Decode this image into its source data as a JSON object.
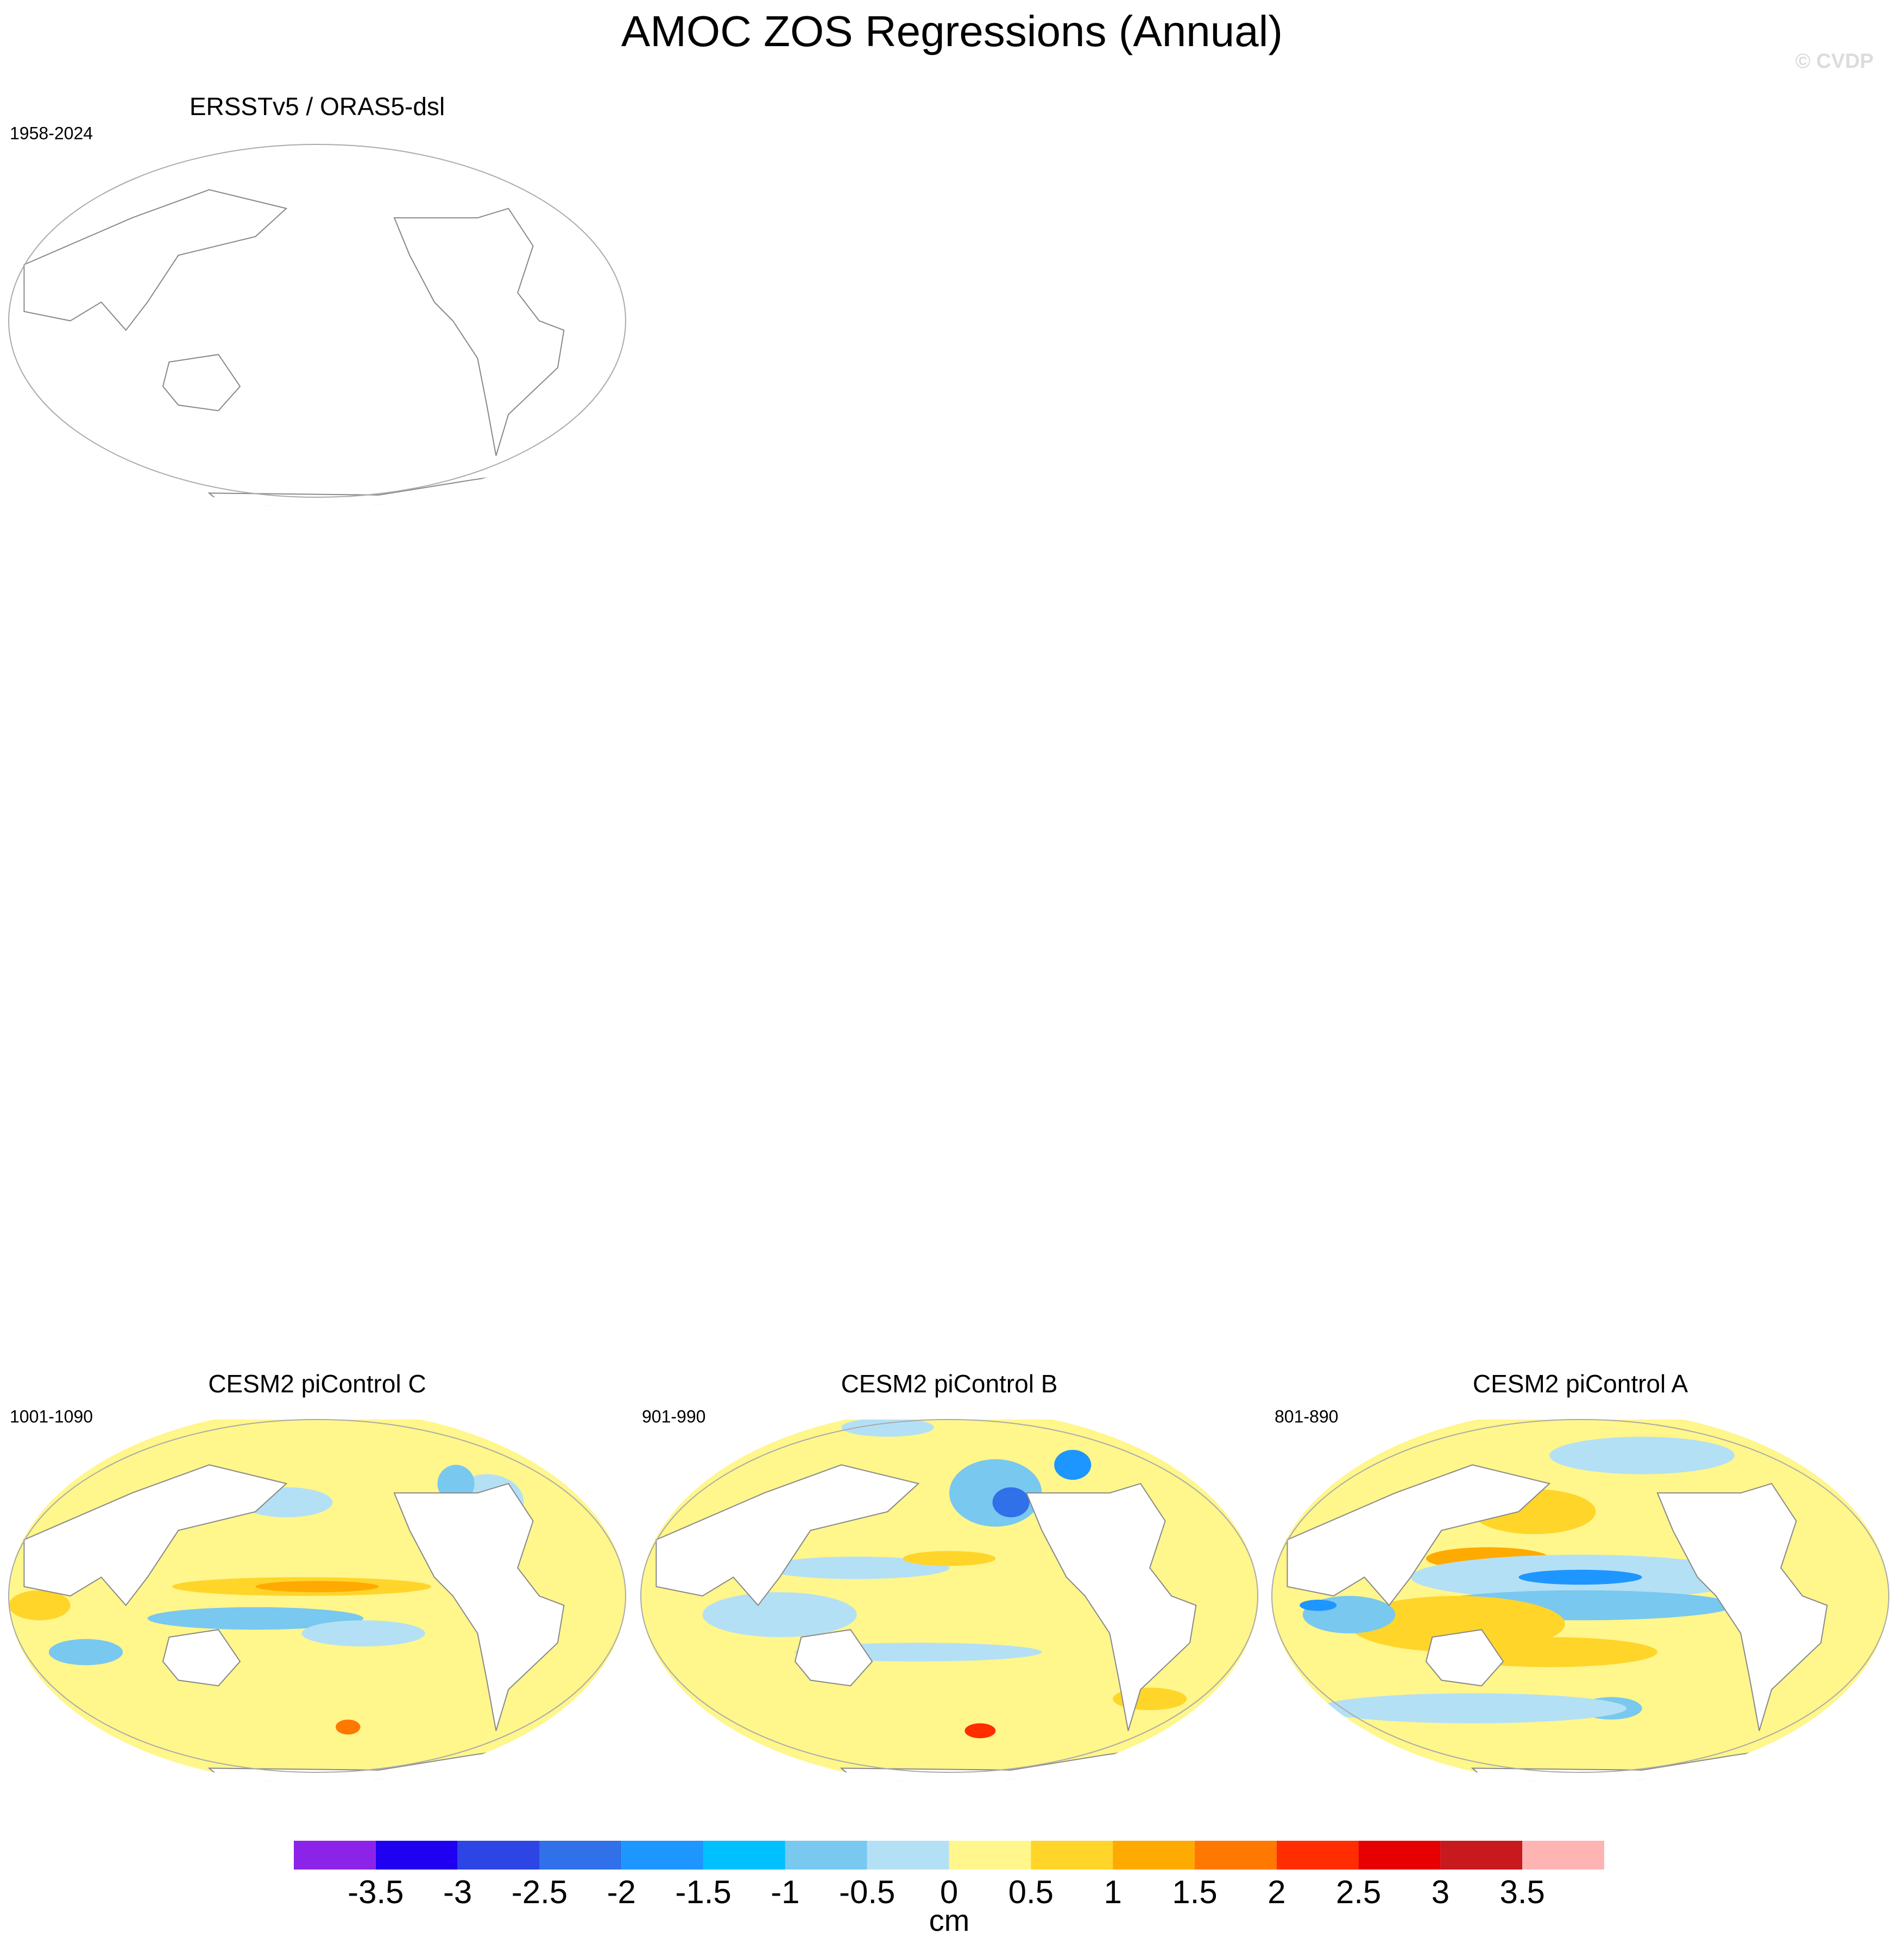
{
  "title": "AMOC ZOS Regressions (Annual)",
  "watermark": "© CVDP",
  "panels": [
    {
      "title": "ERSSTv5 / ORAS5-dsl",
      "period": "1958-2024"
    },
    {
      "title": "CESM2 piControl C",
      "period": "1001-1090"
    },
    {
      "title": "CESM2 piControl B",
      "period": "901-990"
    },
    {
      "title": "CESM2 piControl A",
      "period": "801-890"
    }
  ],
  "colorbar": {
    "colors": [
      "#8b24e8",
      "#2000f0",
      "#2d45e5",
      "#3070e8",
      "#1e96ff",
      "#00c0ff",
      "#78c8f0",
      "#b4e0f5",
      "#fff68c",
      "#ffd52a",
      "#ffaa00",
      "#ff7800",
      "#ff2d00",
      "#e60000",
      "#c8191e",
      "#ffb4b4"
    ],
    "ticks": [
      -3.5,
      -3,
      -2.5,
      -2,
      -1.5,
      -1,
      -0.5,
      0,
      0.5,
      1,
      1.5,
      2,
      2.5,
      3,
      3.5
    ],
    "label": "cm"
  }
}
